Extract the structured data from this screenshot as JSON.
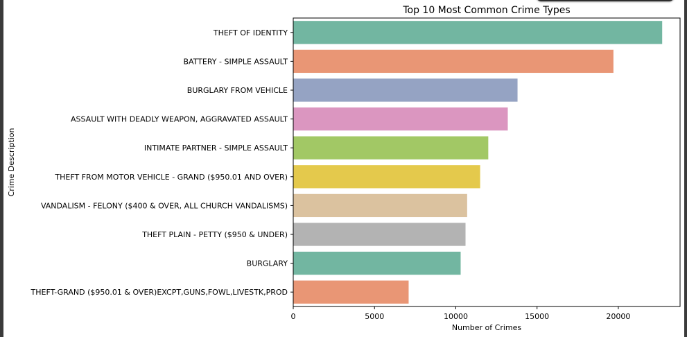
{
  "chart_data": {
    "type": "bar",
    "orientation": "horizontal",
    "title": "Top 10 Most Common Crime Types",
    "xlabel": "Number of Crimes",
    "ylabel": "Crime Description",
    "xlim": [
      0,
      23800
    ],
    "xticks": [
      0,
      5000,
      10000,
      15000,
      20000
    ],
    "categories": [
      "THEFT OF IDENTITY",
      "BATTERY - SIMPLE ASSAULT",
      "BURGLARY FROM VEHICLE",
      "ASSAULT WITH DEADLY WEAPON, AGGRAVATED ASSAULT",
      "INTIMATE PARTNER - SIMPLE ASSAULT",
      "THEFT FROM MOTOR VEHICLE - GRAND ($950.01 AND OVER)",
      "VANDALISM - FELONY ($400 & OVER, ALL CHURCH VANDALISMS)",
      "THEFT PLAIN - PETTY ($950 & UNDER)",
      "BURGLARY",
      "THEFT-GRAND ($950.01 & OVER)EXCPT,GUNS,FOWL,LIVESTK,PROD"
    ],
    "values": [
      22700,
      19700,
      13800,
      13200,
      12000,
      11500,
      10700,
      10600,
      10300,
      7100
    ],
    "colors": [
      "#72b6a1",
      "#e99675",
      "#95a3c3",
      "#db96c0",
      "#a2c865",
      "#e4c94c",
      "#dbc29f",
      "#b3b3b3",
      "#72b6a1",
      "#e99675"
    ],
    "grid": false,
    "legend": false
  }
}
